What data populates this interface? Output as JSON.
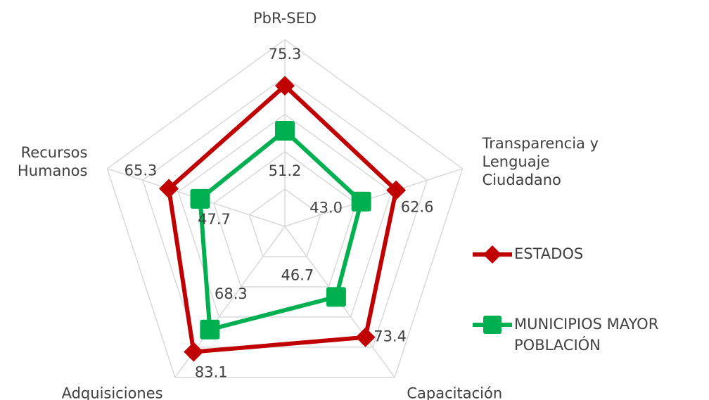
{
  "chart_data": {
    "type": "radar",
    "categories": [
      "PbR-SED",
      "Transparencia y\nLenguaje\nCiudadano",
      "Capacitación",
      "Adquisiciones",
      "Recursos\nHumanos"
    ],
    "series": [
      {
        "name": "ESTADOS",
        "color": "#c00000",
        "marker": "diamond",
        "values": [
          75.3,
          62.6,
          73.4,
          83.1,
          65.3
        ],
        "value_labels": [
          "75.3",
          "62.6",
          "73.4",
          "83.1",
          "65.3"
        ]
      },
      {
        "name": "MUNICIPIOS MAYOR\nPOBLACIÓN",
        "color": "#00b050",
        "marker": "square",
        "values": [
          51.2,
          43.0,
          46.7,
          68.3,
          47.7
        ],
        "value_labels": [
          "51.2",
          "43.0",
          "46.7",
          "68.3",
          "47.7"
        ]
      }
    ],
    "ylim": [
      0,
      100
    ],
    "yticks": [
      0,
      20,
      40,
      60,
      80,
      100
    ],
    "grid": true,
    "legend": "right"
  }
}
